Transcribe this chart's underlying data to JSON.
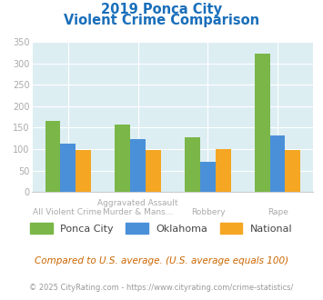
{
  "title_line1": "2019 Ponca City",
  "title_line2": "Violent Crime Comparison",
  "category_labels_row1": [
    "",
    "Aggravated Assault",
    "",
    ""
  ],
  "category_labels_row2": [
    "All Violent Crime",
    "Murder & Mans...",
    "Robbery",
    "Rape"
  ],
  "ponca_city": [
    165,
    158,
    128,
    323
  ],
  "oklahoma": [
    113,
    123,
    71,
    133
  ],
  "national": [
    98,
    98,
    100,
    98
  ],
  "ponca_city_color": "#7ab648",
  "oklahoma_color": "#4a90d9",
  "national_color": "#f5a623",
  "bg_color": "#ddeef3",
  "title_color": "#1a6fba",
  "axis_label_color": "#aaaaaa",
  "legend_label_color": "#444444",
  "footer_color": "#999999",
  "footer_link_color": "#4a90d9",
  "note_color": "#cc6600",
  "ylim": [
    0,
    350
  ],
  "yticks": [
    0,
    50,
    100,
    150,
    200,
    250,
    300,
    350
  ],
  "note_text": "Compared to U.S. average. (U.S. average equals 100)",
  "footer_text1": "© 2025 CityRating.com - ",
  "footer_text2": "https://www.cityrating.com/crime-statistics/",
  "legend_ponca": "Ponca City",
  "legend_oklahoma": "Oklahoma",
  "legend_national": "National"
}
